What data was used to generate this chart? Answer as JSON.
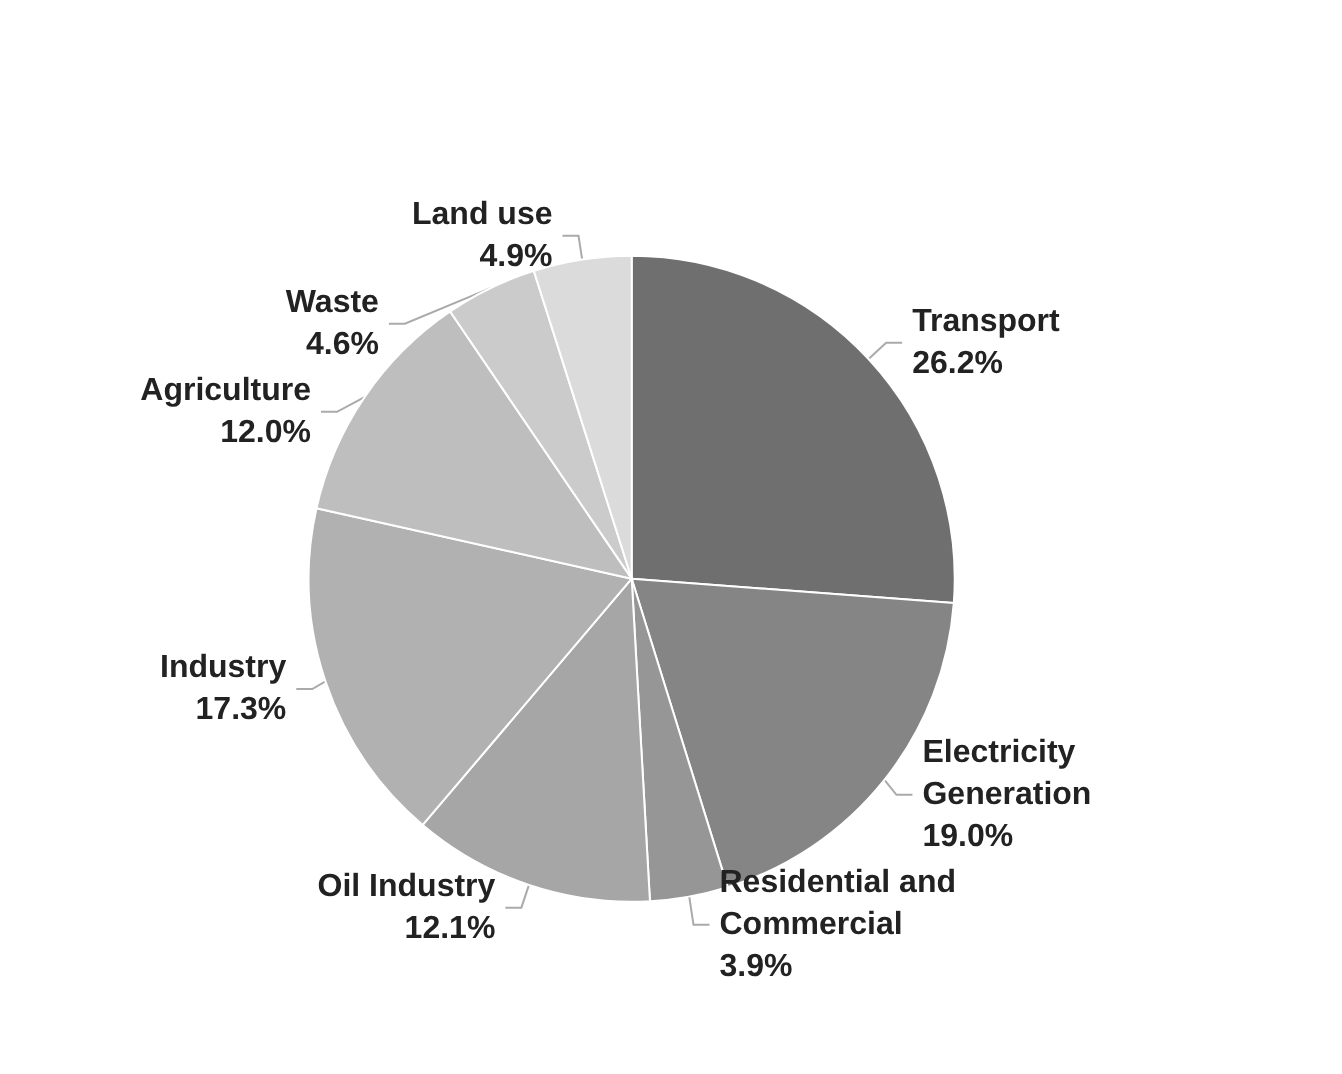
{
  "chart_data": {
    "type": "pie",
    "categories": [
      "Transport",
      "Electricity Generation",
      "Residential and Commercial",
      "Oil Industry",
      "Industry",
      "Agriculture",
      "Waste",
      "Land use"
    ],
    "values": [
      26.2,
      19.0,
      3.9,
      12.1,
      17.3,
      12.0,
      4.6,
      4.9
    ],
    "value_labels": [
      "26.2%",
      "19.0%",
      "3.9%",
      "12.1%",
      "17.3%",
      "12.0%",
      "4.6%",
      "4.9%"
    ],
    "colors": [
      "#6f6f6f",
      "#858585",
      "#969696",
      "#a6a6a6",
      "#b1b1b1",
      "#bebebe",
      "#cbcbcb",
      "#dbdbdb"
    ],
    "legend": false
  }
}
